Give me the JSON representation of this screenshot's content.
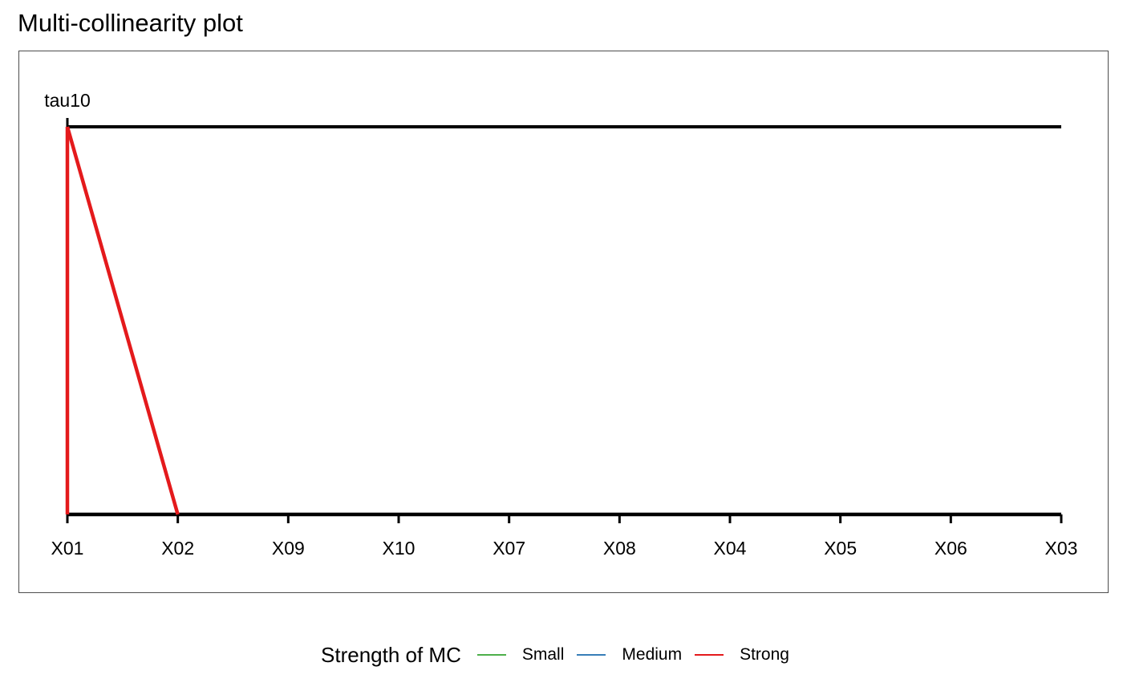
{
  "chart_data": {
    "type": "line",
    "title": "Multi-collinearity plot",
    "axes": [
      {
        "name": "tau10",
        "range": [
          0,
          1
        ]
      }
    ],
    "categories": [
      "X01",
      "X02",
      "X09",
      "X10",
      "X07",
      "X08",
      "X04",
      "X05",
      "X06",
      "X03"
    ],
    "segments": [
      {
        "strength": "Strong",
        "color": "#e41a1c",
        "from": {
          "x": "X01",
          "y": 1
        },
        "to": {
          "x": "X01",
          "y": 0
        }
      },
      {
        "strength": "Strong",
        "color": "#e41a1c",
        "from": {
          "x": "X01",
          "y": 1
        },
        "to": {
          "x": "X02",
          "y": 0
        }
      }
    ],
    "legend": {
      "title": "Strength of MC",
      "placement": "bottom",
      "items": [
        {
          "label": "Small",
          "color": "#4daf4a"
        },
        {
          "label": "Medium",
          "color": "#377eb8"
        },
        {
          "label": "Strong",
          "color": "#e41a1c"
        }
      ]
    }
  }
}
